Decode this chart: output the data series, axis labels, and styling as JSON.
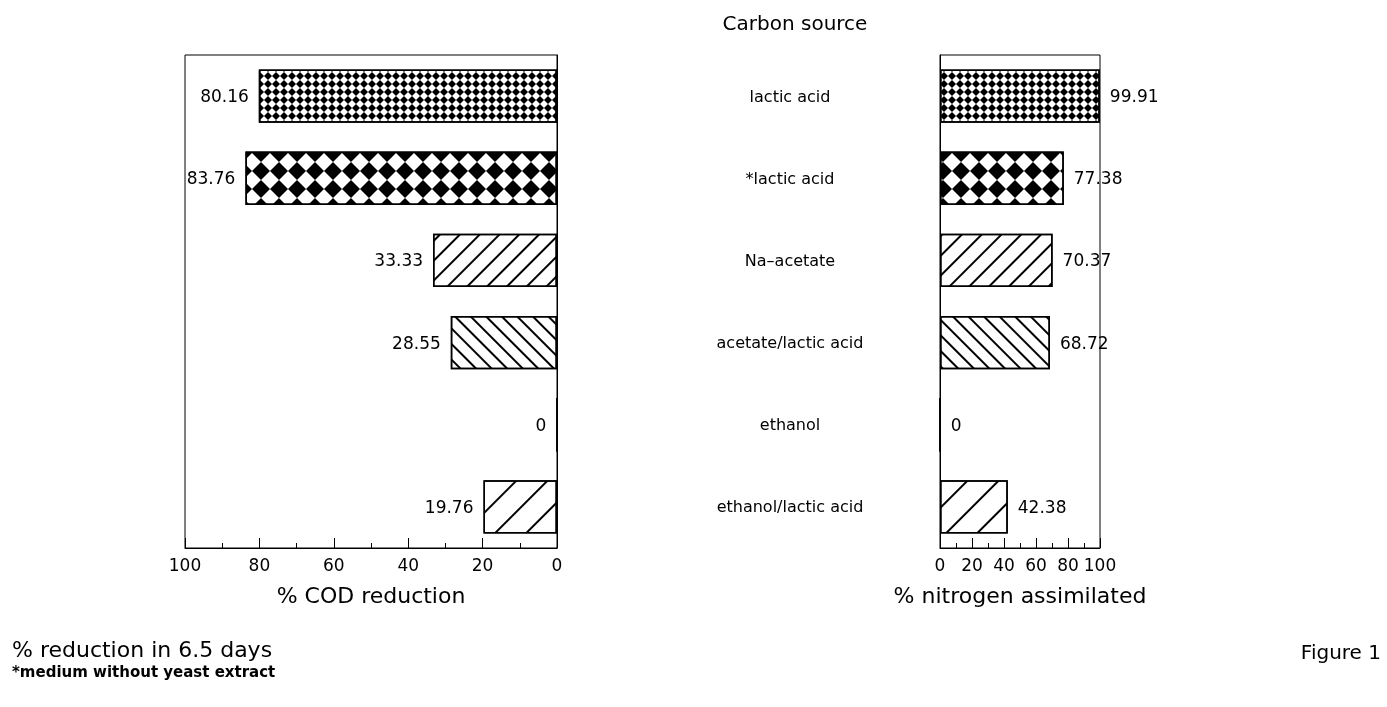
{
  "chart_data": [
    {
      "type": "bar",
      "orientation": "horizontal",
      "xlabel": "% COD reduction",
      "categories": [
        null,
        null,
        null,
        null,
        null,
        null
      ],
      "values": [
        80.16,
        83.76,
        33.33,
        28.55,
        0,
        19.76
      ],
      "color": "#000000",
      "xlim": [
        100,
        0
      ],
      "xticks": [
        100,
        80,
        60,
        40,
        20,
        0
      ],
      "data_labels": true,
      "grid": false,
      "tick_labels": "x",
      "annotations": [
        "% reduction in 6.5 days",
        "*medium without yeast extract"
      ]
    },
    {
      "type": "bar",
      "orientation": "horizontal",
      "title": "Carbon source",
      "xlabel": "% nitrogen assimilated",
      "categories": [
        "lactic acid",
        "*lactic acid",
        "Na–acetate",
        "acetate/lactic acid",
        "ethanol",
        "ethanol/lactic acid"
      ],
      "values": [
        99.91,
        77.38,
        70.37,
        68.72,
        0,
        42.38
      ],
      "color": "#000000",
      "xlim": [
        0,
        100
      ],
      "xticks": [
        0,
        20,
        40,
        60,
        80,
        100
      ],
      "data_labels": true,
      "grid": false,
      "annotations": [
        "Figure 1"
      ]
    }
  ]
}
